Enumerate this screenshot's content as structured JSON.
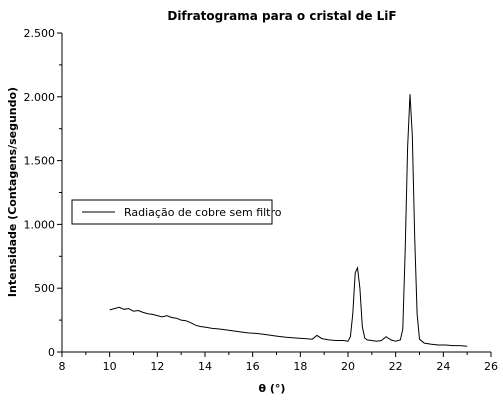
{
  "chart_data": {
    "type": "line",
    "title": "Difratograma para o cristal de LiF",
    "xlabel": "θ (°)",
    "ylabel": "Intensidade (Contagens/segundo)",
    "xlim": [
      8,
      26
    ],
    "ylim": [
      0,
      2500
    ],
    "x_ticks": [
      8,
      10,
      12,
      14,
      16,
      18,
      20,
      22,
      24,
      26
    ],
    "x_tick_labels": [
      "8",
      "10",
      "12",
      "14",
      "16",
      "18",
      "20",
      "22",
      "24",
      "26"
    ],
    "y_ticks": [
      0,
      500,
      1000,
      1500,
      2000,
      2500
    ],
    "y_tick_labels": [
      "0",
      "500",
      "1.000",
      "1.500",
      "2.000",
      "2.500"
    ],
    "grid": false,
    "legend_position": "left-center",
    "series": [
      {
        "name": "Radiação de cobre sem filtro",
        "color": "#000000",
        "x": [
          10.0,
          10.2,
          10.4,
          10.6,
          10.8,
          11.0,
          11.2,
          11.4,
          11.6,
          11.8,
          12.0,
          12.2,
          12.4,
          12.6,
          12.8,
          13.0,
          13.2,
          13.4,
          13.6,
          13.8,
          14.0,
          14.3,
          14.6,
          15.0,
          15.4,
          15.8,
          16.2,
          16.6,
          17.0,
          17.4,
          17.8,
          18.2,
          18.5,
          18.7,
          18.9,
          19.2,
          19.5,
          19.8,
          20.0,
          20.1,
          20.2,
          20.3,
          20.4,
          20.5,
          20.6,
          20.7,
          20.8,
          21.0,
          21.2,
          21.4,
          21.6,
          21.8,
          22.0,
          22.2,
          22.3,
          22.4,
          22.5,
          22.6,
          22.7,
          22.8,
          22.9,
          23.0,
          23.2,
          23.5,
          23.8,
          24.1,
          24.4,
          24.7,
          25.0
        ],
        "y": [
          330,
          340,
          350,
          335,
          340,
          320,
          325,
          310,
          300,
          295,
          285,
          275,
          285,
          270,
          265,
          250,
          245,
          230,
          210,
          200,
          195,
          185,
          180,
          170,
          160,
          150,
          145,
          135,
          125,
          115,
          110,
          105,
          100,
          130,
          105,
          95,
          90,
          90,
          85,
          120,
          300,
          620,
          660,
          500,
          200,
          110,
          95,
          90,
          85,
          90,
          120,
          95,
          85,
          95,
          180,
          800,
          1600,
          2020,
          1700,
          900,
          300,
          100,
          70,
          60,
          55,
          55,
          50,
          50,
          45
        ]
      }
    ]
  }
}
